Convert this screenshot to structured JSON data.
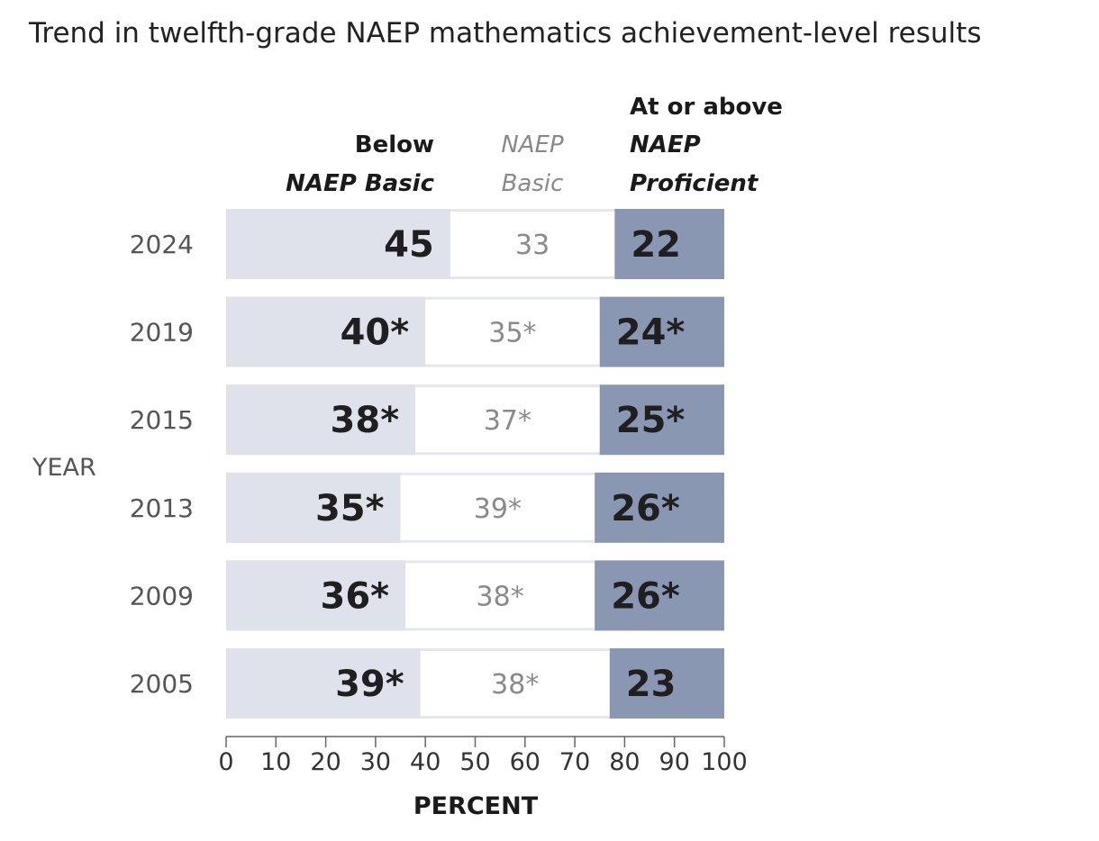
{
  "chart_data": {
    "type": "bar",
    "stacked": true,
    "orientation": "horizontal",
    "title": "Trend in twelfth-grade NAEP mathematics achievement-level results",
    "ylabel": "YEAR",
    "xlabel": "PERCENT",
    "categories": [
      "2024",
      "2019",
      "2015",
      "2013",
      "2009",
      "2005"
    ],
    "xlim": [
      0,
      100
    ],
    "xticks": [
      0,
      10,
      20,
      30,
      40,
      50,
      60,
      70,
      80,
      90,
      100
    ],
    "series": [
      {
        "header": [
          "Below",
          "NAEP Basic"
        ],
        "values": [
          45,
          40,
          38,
          35,
          36,
          39
        ],
        "labels": [
          "45",
          "40*",
          "38*",
          "35*",
          "36*",
          "39*"
        ],
        "color": "#dfe2ea"
      },
      {
        "header": [
          "NAEP",
          "Basic"
        ],
        "values": [
          33,
          35,
          37,
          39,
          38,
          38
        ],
        "labels": [
          "33",
          "35*",
          "37*",
          "39*",
          "38*",
          "38*"
        ],
        "color": "#ffffff"
      },
      {
        "header": [
          "At or above",
          "NAEP",
          "Proficient"
        ],
        "values": [
          22,
          24,
          25,
          26,
          26,
          23
        ],
        "labels": [
          "22",
          "24*",
          "25*",
          "26*",
          "26*",
          "23"
        ],
        "color": "#8a97b3"
      }
    ]
  }
}
